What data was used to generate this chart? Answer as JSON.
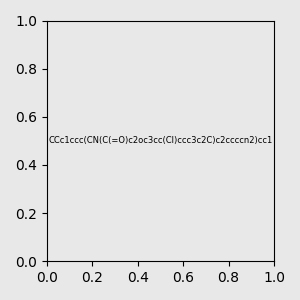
{
  "smiles": "CCc1ccc(CN(C(=O)c2oc3cc(Cl)ccc3c2C)c2ccccn2)cc1",
  "img_size": [
    300,
    300
  ],
  "background_color": "#e8e8e8",
  "atom_colors": {
    "N": [
      0,
      0,
      255
    ],
    "O": [
      255,
      0,
      0
    ],
    "Cl": [
      0,
      200,
      0
    ]
  },
  "title": ""
}
